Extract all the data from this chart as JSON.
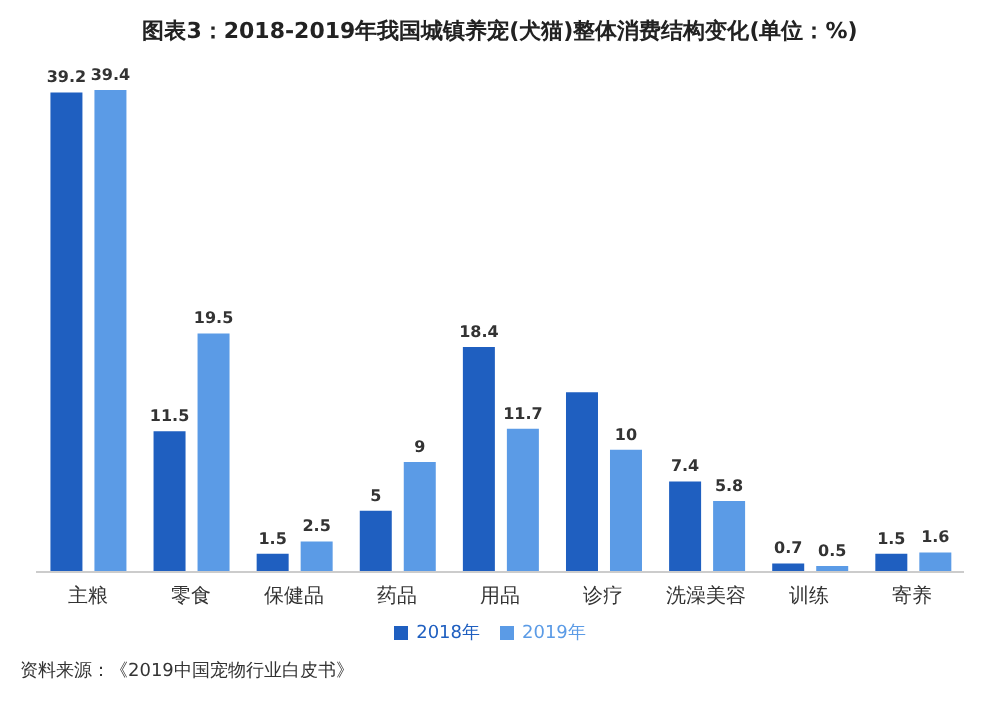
{
  "chart_data": {
    "type": "bar",
    "title": "图表3：2018-2019年我国城镇养宠(犬猫)整体消费结构变化(单位：%)",
    "categories": [
      "主粮",
      "零食",
      "保健品",
      "药品",
      "用品",
      "诊疗",
      "洗澡美容",
      "训练",
      "寄养"
    ],
    "series": [
      {
        "name": "2018年",
        "color": "#1f5fc0",
        "values": [
          39.2,
          11.5,
          1.5,
          5,
          18.4,
          14.7,
          7.4,
          0.7,
          1.5
        ],
        "value_labels": [
          "39.2",
          "11.5",
          "1.5",
          "5",
          "18.4",
          null,
          "7.4",
          "0.7",
          "1.5"
        ]
      },
      {
        "name": "2019年",
        "color": "#5b9be6",
        "values": [
          39.4,
          19.5,
          2.5,
          9,
          11.7,
          10,
          5.8,
          0.5,
          1.6
        ],
        "value_labels": [
          "39.4",
          "19.5",
          "2.5",
          "9",
          "11.7",
          "10",
          "5.8",
          "0.5",
          "1.6"
        ]
      }
    ],
    "legend": "bottom",
    "annotations": [
      "资料来源：《2019中国宠物行业白皮书》"
    ]
  }
}
